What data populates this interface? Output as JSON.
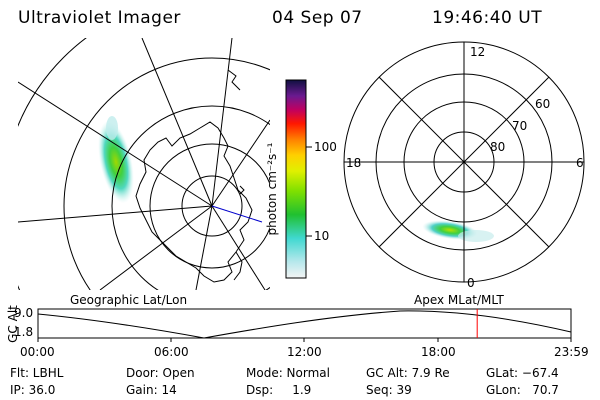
{
  "header": {
    "title": "Ultraviolet Imager",
    "date": "04 Sep 07",
    "time": "19:46:40 UT"
  },
  "colorbar": {
    "label": "photon cm⁻²s⁻¹",
    "ticks": [
      "100",
      "10"
    ]
  },
  "left_panel": {
    "caption": "Geographic Lat/Lon"
  },
  "right_panel": {
    "caption": "Apex  MLat/MLT",
    "mlt_labels": {
      "top": "12",
      "left": "18",
      "right": "6",
      "bottom": "0"
    },
    "lat_labels": [
      "60",
      "70",
      "80"
    ]
  },
  "altitude_plot": {
    "ylabel": "GC Alt",
    "yticks": [
      "9.0",
      "1.8"
    ],
    "xticks": [
      "00:00",
      "06:00",
      "12:00",
      "18:00",
      "23:59"
    ],
    "current_time_fraction": 0.824,
    "marker_color": "#ff0000"
  },
  "status": {
    "flt": "Flt: LBHL",
    "ip": "IP: 36.0",
    "door": "Door: Open",
    "gain": "Gain: 14",
    "mode": "Mode: Normal",
    "dsp": "Dsp:     1.9",
    "gc_alt": "GC Alt: 7.9 Re",
    "seq": "Seq: 39",
    "glat": "GLat: −67.4",
    "glon": "GLon:   70.7"
  }
}
